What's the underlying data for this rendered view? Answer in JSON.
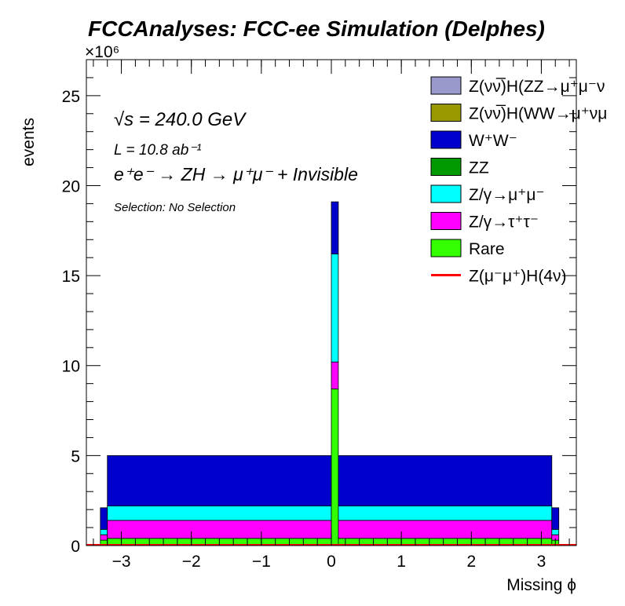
{
  "chart_data": {
    "type": "bar",
    "title": "FCCAnalyses: FCC-ee Simulation (Delphes)",
    "xlabel": "Missing ϕ",
    "ylabel": "events",
    "y_multiplier": "×10⁶",
    "xlim": [
      -3.5,
      3.5
    ],
    "ylim": [
      0,
      27000000
    ],
    "x_ticks": [
      -3,
      -2,
      -1,
      0,
      1,
      2,
      3
    ],
    "x_tick_labels": [
      "−3",
      "−2",
      "−1",
      "0",
      "1",
      "2",
      "3"
    ],
    "y_ticks": [
      0,
      5000000,
      10000000,
      15000000,
      20000000,
      25000000
    ],
    "y_tick_labels": [
      "0",
      "5",
      "10",
      "15",
      "20",
      "25"
    ],
    "stacked": true,
    "bins": [
      {
        "lo": -3.3,
        "hi": -3.2
      },
      {
        "lo": -3.2,
        "hi": 0.0
      },
      {
        "lo": 0.0,
        "hi": 0.1
      },
      {
        "lo": 0.1,
        "hi": 3.15
      },
      {
        "lo": 3.15,
        "hi": 3.25
      }
    ],
    "series": [
      {
        "name": "Rare",
        "color": "#33ff00",
        "values": [
          300000,
          400000,
          8700000,
          400000,
          300000
        ]
      },
      {
        "name": "Z/γ→τ⁺τ⁻",
        "color": "#ff00ff",
        "values": [
          300000,
          1000000,
          1500000,
          1000000,
          300000
        ]
      },
      {
        "name": "Z/γ→μ⁺μ⁻",
        "color": "#00ffff",
        "values": [
          300000,
          800000,
          6000000,
          800000,
          300000
        ]
      },
      {
        "name": "ZZ",
        "color": "#009900",
        "values": [
          0,
          0,
          0,
          0,
          0
        ]
      },
      {
        "name": "W⁺W⁻",
        "color": "#0000cc",
        "values": [
          1200000,
          2800000,
          2900000,
          2800000,
          1200000
        ]
      },
      {
        "name": "Z(νν̅)H(WW→μ⁺νμ",
        "color": "#999900",
        "values": [
          0,
          0,
          0,
          0,
          0
        ]
      },
      {
        "name": "Z(νν̅)H(ZZ→μ⁺μ⁻ν",
        "color": "#9999cc",
        "values": [
          0,
          0,
          0,
          0,
          0
        ]
      }
    ],
    "signal": {
      "name": "Z(μ⁻μ⁺)H(4ν)",
      "color": "#ff0000",
      "type": "line",
      "values": [
        0,
        0,
        0,
        0,
        0
      ]
    },
    "legend_placement": "top-right",
    "grid": false
  },
  "annotations": {
    "sqrt_s": "√s = 240.0 GeV",
    "lumi": "L = 10.8 ab⁻¹",
    "process": "e⁺e⁻ → ZH → μ⁺μ⁻ + Invisible",
    "selection": "Selection: No Selection"
  },
  "legend": [
    {
      "label": "Z(νν̅)H(ZZ→μ⁺μ⁻ν",
      "color": "#9999cc",
      "kind": "box"
    },
    {
      "label": "Z(νν̅)H(WW→μ⁺νμ",
      "color": "#999900",
      "kind": "box"
    },
    {
      "label": "W⁺W⁻",
      "color": "#0000cc",
      "kind": "box"
    },
    {
      "label": "ZZ",
      "color": "#009900",
      "kind": "box"
    },
    {
      "label": "Z/γ→μ⁺μ⁻",
      "color": "#00ffff",
      "kind": "box"
    },
    {
      "label": "Z/γ→τ⁺τ⁻",
      "color": "#ff00ff",
      "kind": "box"
    },
    {
      "label": "Rare",
      "color": "#33ff00",
      "kind": "box"
    },
    {
      "label": "Z(μ⁻μ⁺)H(4ν)",
      "color": "#ff0000",
      "kind": "line"
    }
  ]
}
